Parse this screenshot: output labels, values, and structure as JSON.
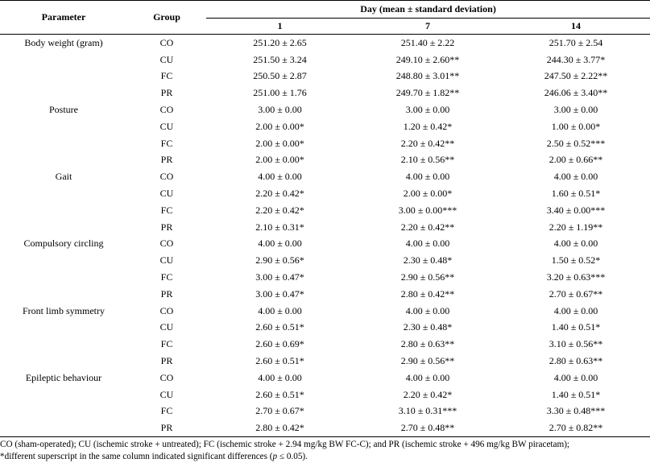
{
  "header": {
    "parameter": "Parameter",
    "group": "Group",
    "day_span": "Day (mean ± standard deviation)",
    "days": [
      "1",
      "7",
      "14"
    ]
  },
  "rows": [
    {
      "param": "Body weight (gram)",
      "group": "CO",
      "d1": "251.20 ± 2.65",
      "d7": "251.40 ± 2.22",
      "d14": "251.70 ± 2.54"
    },
    {
      "param": "",
      "group": "CU",
      "d1": "251.50 ± 3.24",
      "d7": "249.10 ± 2.60**",
      "d14": "244.30 ± 3.77*"
    },
    {
      "param": "",
      "group": "FC",
      "d1": "250.50 ± 2.87",
      "d7": "248.80 ± 3.01**",
      "d14": "247.50 ± 2.22**"
    },
    {
      "param": "",
      "group": "PR",
      "d1": "251.00 ± 1.76",
      "d7": "249.70 ± 1.82**",
      "d14": "246.06 ± 3.40**"
    },
    {
      "param": "Posture",
      "group": "CO",
      "d1": "3.00 ± 0.00",
      "d7": "3.00 ± 0.00",
      "d14": "3.00 ± 0.00"
    },
    {
      "param": "",
      "group": "CU",
      "d1": "2.00 ± 0.00*",
      "d7": "1.20 ± 0.42*",
      "d14": "1.00 ± 0.00*"
    },
    {
      "param": "",
      "group": "FC",
      "d1": "2.00 ± 0.00*",
      "d7": "2.20 ± 0.42**",
      "d14": "2.50 ± 0.52***"
    },
    {
      "param": "",
      "group": "PR",
      "d1": "2.00 ± 0.00*",
      "d7": "2.10 ± 0.56**",
      "d14": "2.00 ± 0.66**"
    },
    {
      "param": "Gait",
      "group": "CO",
      "d1": "4.00 ± 0.00",
      "d7": "4.00 ± 0.00",
      "d14": "4.00 ± 0.00"
    },
    {
      "param": "",
      "group": "CU",
      "d1": "2.20 ± 0.42*",
      "d7": "2.00 ± 0.00*",
      "d14": "1.60 ± 0.51*"
    },
    {
      "param": "",
      "group": "FC",
      "d1": "2.20 ± 0.42*",
      "d7": "3.00 ± 0.00***",
      "d14": "3.40 ± 0.00***"
    },
    {
      "param": "",
      "group": "PR",
      "d1": "2.10 ± 0.31*",
      "d7": "2.20 ± 0.42**",
      "d14": "2.20 ± 1.19**"
    },
    {
      "param": "Compulsory circling",
      "group": "CO",
      "d1": "4.00 ± 0.00",
      "d7": "4.00 ± 0.00",
      "d14": "4.00 ± 0.00"
    },
    {
      "param": "",
      "group": "CU",
      "d1": "2.90 ± 0.56*",
      "d7": "2.30 ± 0.48*",
      "d14": "1.50 ± 0.52*"
    },
    {
      "param": "",
      "group": "FC",
      "d1": "3.00 ± 0.47*",
      "d7": "2.90 ± 0.56**",
      "d14": "3.20 ± 0.63***"
    },
    {
      "param": "",
      "group": "PR",
      "d1": "3.00 ± 0.47*",
      "d7": "2.80 ± 0.42**",
      "d14": "2.70 ± 0.67**"
    },
    {
      "param": "Front limb symmetry",
      "group": "CO",
      "d1": "4.00 ± 0.00",
      "d7": "4.00 ± 0.00",
      "d14": "4.00 ± 0.00"
    },
    {
      "param": "",
      "group": "CU",
      "d1": "2.60 ± 0.51*",
      "d7": "2.30 ± 0.48*",
      "d14": "1.40 ± 0.51*"
    },
    {
      "param": "",
      "group": "FC",
      "d1": "2.60 ± 0.69*",
      "d7": "2.80 ± 0.63**",
      "d14": "3.10 ± 0.56**"
    },
    {
      "param": "",
      "group": "PR",
      "d1": "2.60 ± 0.51*",
      "d7": "2.90 ± 0.56**",
      "d14": "2.80 ± 0.63**"
    },
    {
      "param": "Epileptic behaviour",
      "group": "CO",
      "d1": "4.00 ± 0.00",
      "d7": "4.00 ± 0.00",
      "d14": "4.00 ± 0.00"
    },
    {
      "param": "",
      "group": "CU",
      "d1": "2.60 ± 0.51*",
      "d7": "2.20 ± 0.42*",
      "d14": "1.40 ± 0.51*"
    },
    {
      "param": "",
      "group": "FC",
      "d1": "2.70 ± 0.67*",
      "d7": "3.10 ± 0.31***",
      "d14": "3.30 ± 0.48***"
    },
    {
      "param": "",
      "group": "PR",
      "d1": "2.80 ± 0.42*",
      "d7": "2.70 ± 0.48**",
      "d14": "2.70 ± 0.82**"
    }
  ],
  "footnote": {
    "line1": "CO (sham-operated); CU (ischemic stroke + untreated); FC (ischemic stroke + 2.94 mg/kg BW FC-C); and PR (ischemic stroke + 496 mg/kg BW piracetam);",
    "line2_pre": "*different superscript in the same column indicated significant differences (",
    "line2_var": "p",
    "line2_post": " ≤ 0.05)."
  }
}
